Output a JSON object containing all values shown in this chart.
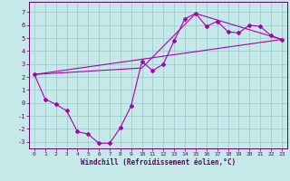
{
  "xlabel": "Windchill (Refroidissement éolien,°C)",
  "bg_color": "#c5e8e8",
  "grid_color": "#a0cccc",
  "line_color": "#aa00aa",
  "spine_color": "#660066",
  "xlim": [
    -0.5,
    23.5
  ],
  "ylim": [
    -3.5,
    7.8
  ],
  "yticks": [
    -3,
    -2,
    -1,
    0,
    1,
    2,
    3,
    4,
    5,
    6,
    7
  ],
  "xticks": [
    0,
    1,
    2,
    3,
    4,
    5,
    6,
    7,
    8,
    9,
    10,
    11,
    12,
    13,
    14,
    15,
    16,
    17,
    18,
    19,
    20,
    21,
    22,
    23
  ],
  "series1_x": [
    0,
    1,
    2,
    3,
    4,
    5,
    6,
    7,
    8,
    9,
    10,
    11,
    12,
    13,
    14,
    15,
    16,
    17,
    18,
    19,
    20,
    21,
    22,
    23
  ],
  "series1_y": [
    2.2,
    0.3,
    -0.1,
    -0.6,
    -2.2,
    -2.4,
    -3.1,
    -3.1,
    -1.9,
    -0.2,
    3.2,
    2.5,
    3.0,
    4.8,
    6.5,
    6.9,
    5.9,
    6.3,
    5.5,
    5.4,
    6.0,
    5.9,
    5.2,
    4.9
  ],
  "series2_x": [
    0,
    23
  ],
  "series2_y": [
    2.2,
    4.9
  ],
  "series3_x": [
    0,
    10,
    15,
    23
  ],
  "series3_y": [
    2.2,
    2.7,
    6.9,
    4.9
  ]
}
